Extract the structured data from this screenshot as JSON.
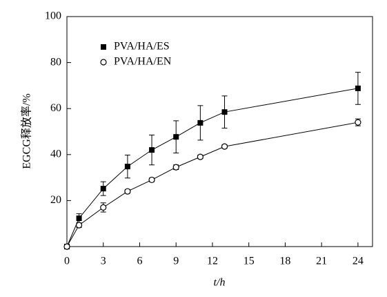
{
  "chart_data": {
    "type": "line",
    "xlabel": "t/h",
    "ylabel": "EGCG释放率/%",
    "x": [
      0,
      1,
      3,
      5,
      7,
      9,
      11,
      13,
      24
    ],
    "series": [
      {
        "name": "PVA/HA/ES",
        "color": "#000000",
        "marker": "square",
        "values": [
          0,
          12.3,
          25.2,
          34.8,
          42,
          47.7,
          53.8,
          58.5,
          68.8
        ],
        "errors": [
          0,
          2,
          3,
          5,
          6.5,
          7,
          7.5,
          7,
          7
        ]
      },
      {
        "name": "PVA/HA/EN",
        "color": "#000000",
        "marker": "circle",
        "values": [
          0,
          9.3,
          17,
          24,
          29,
          34.5,
          39,
          43.5,
          54
        ],
        "errors": [
          0,
          1,
          2,
          0.8,
          0.8,
          1,
          0.8,
          0.8,
          1.5
        ]
      }
    ],
    "xlim": [
      0,
      25.2
    ],
    "ylim": [
      0,
      100
    ],
    "xticks": [
      0,
      3,
      6,
      9,
      12,
      15,
      18,
      21,
      24
    ],
    "yticks": [
      20,
      40,
      60,
      80,
      100
    ],
    "legend": "upper left"
  }
}
